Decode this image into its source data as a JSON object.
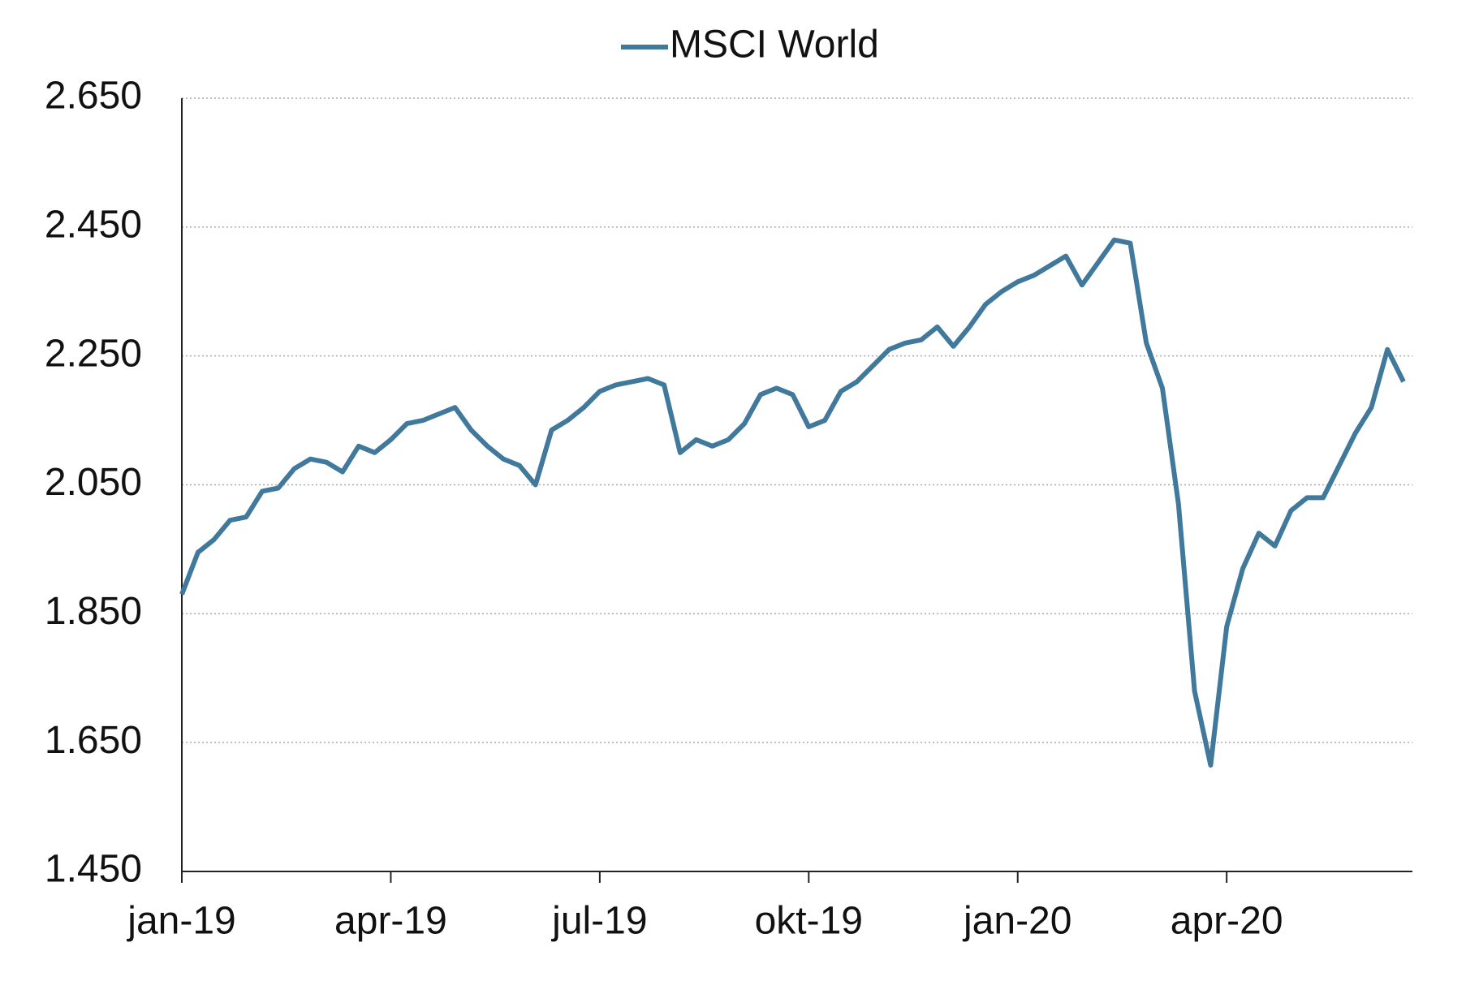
{
  "chart_data": {
    "type": "line",
    "categories": [
      "jan-19",
      null,
      null,
      null,
      null,
      null,
      null,
      null,
      null,
      null,
      null,
      null,
      null,
      "apr-19",
      null,
      null,
      null,
      null,
      null,
      null,
      null,
      null,
      null,
      null,
      null,
      null,
      "jul-19",
      null,
      null,
      null,
      null,
      null,
      null,
      null,
      null,
      null,
      null,
      null,
      null,
      "okt-19",
      null,
      null,
      null,
      null,
      null,
      null,
      null,
      null,
      null,
      null,
      null,
      null,
      "jan-20",
      null,
      null,
      null,
      null,
      null,
      null,
      null,
      null,
      null,
      null,
      null,
      null,
      "apr-20",
      null,
      null,
      null,
      null,
      null,
      null,
      null,
      null,
      null,
      null,
      null
    ],
    "series": [
      {
        "name": "MSCI World",
        "color": "#41799c",
        "values": [
          1880,
          1945,
          1965,
          1995,
          2000,
          2040,
          2045,
          2075,
          2090,
          2085,
          2070,
          2110,
          2100,
          2120,
          2145,
          2150,
          2160,
          2170,
          2135,
          2110,
          2090,
          2080,
          2050,
          2135,
          2150,
          2170,
          2195,
          2205,
          2210,
          2215,
          2205,
          2100,
          2120,
          2110,
          2120,
          2145,
          2190,
          2200,
          2190,
          2140,
          2150,
          2195,
          2210,
          2235,
          2260,
          2270,
          2275,
          2295,
          2265,
          2295,
          2330,
          2350,
          2365,
          2375,
          2390,
          2405,
          2360,
          2395,
          2430,
          2425,
          2270,
          2200,
          2020,
          1730,
          1615,
          1830,
          1920,
          1975,
          1955,
          2010,
          2030,
          2030,
          2080,
          2130,
          2170,
          2260,
          2210
        ]
      }
    ],
    "ylim": [
      1450,
      2650
    ],
    "yticks": [
      {
        "value": 1450,
        "label": "1.450"
      },
      {
        "value": 1650,
        "label": "1.650"
      },
      {
        "value": 1850,
        "label": "1.850"
      },
      {
        "value": 2050,
        "label": "2.050"
      },
      {
        "value": 2250,
        "label": "2.250"
      },
      {
        "value": 2450,
        "label": "2.450"
      },
      {
        "value": 2650,
        "label": "2.650"
      }
    ],
    "grid": true,
    "legend": "top"
  }
}
